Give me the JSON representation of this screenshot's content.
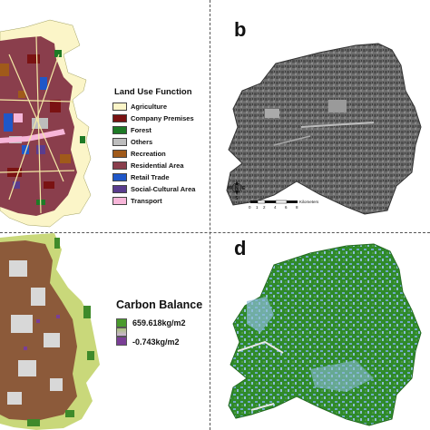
{
  "panels": {
    "b": {
      "label": "b"
    },
    "d": {
      "label": "d"
    }
  },
  "land_use_legend": {
    "title": "Land Use Function",
    "items": [
      {
        "label": "Agriculture",
        "color": "#fbf5c8"
      },
      {
        "label": "Company Premises",
        "color": "#7a1212"
      },
      {
        "label": "Forest",
        "color": "#1e7a26"
      },
      {
        "label": "Others",
        "color": "#bdbdbd"
      },
      {
        "label": "Recreation",
        "color": "#a05a1a"
      },
      {
        "label": "Residential Area",
        "color": "#8a3e4c"
      },
      {
        "label": "Retail Trade",
        "color": "#1f57c8"
      },
      {
        "label": "Social-Cultural Area",
        "color": "#5a3c8e"
      },
      {
        "label": "Transport",
        "color": "#f7b6d9"
      }
    ]
  },
  "carbon_legend": {
    "title": "Carbon Balance",
    "max_label": "659.618kg/m2",
    "min_label": "-0.743kg/m2",
    "max_color": "#4a9a2c",
    "min_color": "#7a3e96"
  },
  "scale_bar": {
    "ticks": [
      "0",
      "1",
      "2",
      "4",
      "6",
      "8"
    ],
    "unit": "Kilometers"
  },
  "north_arrow": {
    "letters": [
      "N",
      "E",
      "S",
      "W"
    ]
  }
}
